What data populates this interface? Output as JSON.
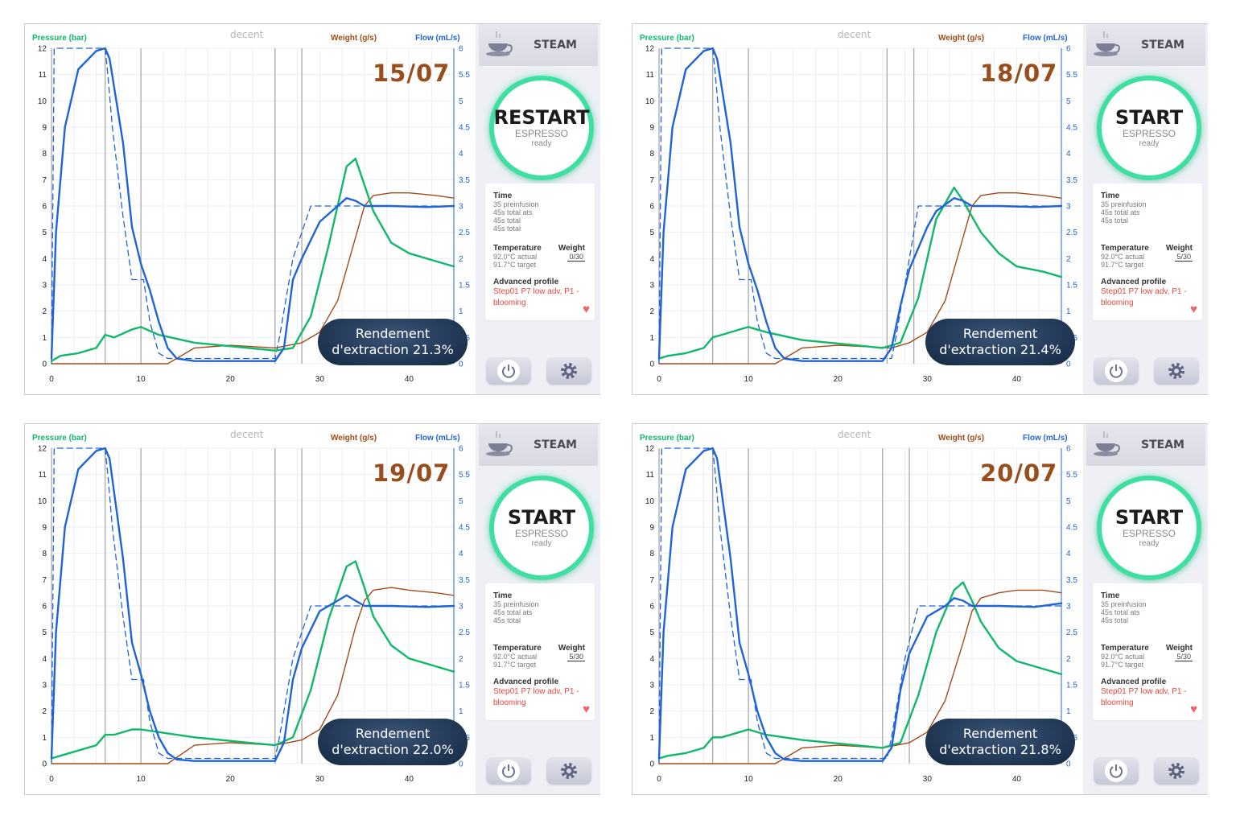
{
  "brand": "decent",
  "axis_titles": {
    "pressure": "Pressure (bar)",
    "weight": "Weight (g/s)",
    "flow": "Flow (mL/s)"
  },
  "colors": {
    "pressure": "#10b86a",
    "flow": "#1f63d8",
    "weight": "#a44a17",
    "date": "#9a4d1c",
    "ring": "#3ee0a2",
    "badge": "#1f3552"
  },
  "steam_label": "STEAM",
  "info": {
    "time_heading": "Time",
    "time_lines": [
      "35 preinfusion",
      "45s total ats",
      "45s total",
      "45s total"
    ],
    "temp_heading": "Temperature",
    "temp_lines": [
      "92.0°C actual",
      "91.7°C target"
    ],
    "weight_heading": "Weight",
    "profile_heading": "Advanced profile",
    "profile_lines": [
      "Step01 P7 low adv, P1 -",
      "blooming"
    ]
  },
  "icons": [
    "cup-icon",
    "power-icon",
    "gear-icon",
    "heart-icon"
  ],
  "panels": [
    {
      "date": "15/07",
      "start_label": "RESTART",
      "start_sub": "ESPRESSO",
      "start_status": "ready",
      "weight_value": "0/30",
      "badge_line1": "Rendement",
      "badge_line2": "d'extraction 21.3%",
      "time_lines": [
        "35 preinfusion",
        "45s total ats",
        "45s total",
        "45s total"
      ]
    },
    {
      "date": "18/07",
      "start_label": "START",
      "start_sub": "ESPRESSO",
      "start_status": "ready",
      "weight_value": "5/30",
      "badge_line1": "Rendement",
      "badge_line2": "d'extraction 21.4%",
      "time_lines": [
        "35 preinfusion",
        "45s total ats",
        "45s total",
        ""
      ]
    },
    {
      "date": "19/07",
      "start_label": "START",
      "start_sub": "ESPRESSO",
      "start_status": "ready",
      "weight_value": "5/30",
      "badge_line1": "Rendement",
      "badge_line2": "d'extraction 22.0%",
      "time_lines": [
        "35 preinfusion",
        "45s total ats",
        "45s total",
        ""
      ]
    },
    {
      "date": "20/07",
      "start_label": "START",
      "start_sub": "ESPRESSO",
      "start_status": "ready",
      "weight_value": "5/30",
      "badge_line1": "Rendement",
      "badge_line2": "d'extraction 21.8%",
      "time_lines": [
        "35 preinfusion",
        "45s total ats",
        "45s total",
        ""
      ]
    }
  ],
  "chart_data": [
    {
      "type": "line",
      "xlabel": "",
      "ylabel": "Pressure (bar)",
      "y2label": "Flow (mL/s)",
      "xlim": [
        0,
        45
      ],
      "ylim": [
        0,
        12
      ],
      "y2lim": [
        0,
        6
      ],
      "x_ticks": [
        0,
        10,
        20,
        30,
        40
      ],
      "y_ticks": [
        0,
        1,
        2,
        3,
        4,
        5,
        6,
        7,
        8,
        9,
        10,
        11,
        12
      ],
      "y2_ticks": [
        0,
        0.5,
        1,
        1.5,
        2,
        2.5,
        3,
        3.5,
        4,
        4.5,
        5,
        5.5,
        6
      ],
      "vlines": [
        0,
        6,
        10,
        25,
        28
      ],
      "series": [
        {
          "key": "pressure",
          "x": [
            0,
            1,
            3,
            5,
            6,
            7,
            9,
            10,
            12,
            16,
            22,
            25,
            27,
            29,
            31,
            33,
            34,
            35,
            36,
            38,
            40,
            43,
            45
          ],
          "y": [
            0.1,
            0.3,
            0.4,
            0.6,
            1.1,
            1.0,
            1.3,
            1.4,
            1.1,
            0.8,
            0.6,
            0.5,
            0.6,
            1.8,
            4.5,
            7.5,
            7.8,
            6.8,
            5.8,
            4.6,
            4.2,
            3.9,
            3.7
          ]
        },
        {
          "key": "flow",
          "x": [
            0,
            0.5,
            1.5,
            3,
            5,
            6,
            6.5,
            8,
            9,
            10,
            11,
            12,
            13,
            14,
            16,
            25,
            26,
            27,
            28,
            30,
            32,
            33,
            34,
            35,
            38,
            42,
            45
          ],
          "y": [
            0.1,
            2.5,
            4.5,
            5.6,
            5.95,
            6.0,
            5.8,
            4.2,
            2.6,
            1.9,
            1.4,
            0.8,
            0.3,
            0.1,
            0.05,
            0.05,
            0.3,
            1.6,
            2.0,
            2.7,
            3.0,
            3.15,
            3.1,
            3.0,
            3.0,
            2.98,
            3.0
          ]
        },
        {
          "key": "flow_target",
          "dashed": true,
          "x": [
            0,
            0.3,
            6,
            6.3,
            6.8,
            8,
            9,
            9.3,
            10.3,
            11,
            12,
            13,
            14,
            25,
            25.5,
            27,
            29,
            30,
            45
          ],
          "y": [
            0,
            6,
            6,
            5.5,
            4.5,
            2.8,
            1.6,
            1.6,
            1.6,
            0.8,
            0.2,
            0.1,
            0.1,
            0.1,
            0.5,
            2.0,
            3.0,
            3.0,
            3.0
          ]
        },
        {
          "key": "weight",
          "x": [
            0,
            13,
            16,
            20,
            25,
            28,
            30,
            32,
            34,
            35,
            36,
            38,
            40,
            43,
            45
          ],
          "y": [
            0,
            0,
            0.3,
            0.35,
            0.3,
            0.4,
            0.6,
            1.2,
            2.4,
            3.0,
            3.2,
            3.25,
            3.25,
            3.2,
            3.15
          ]
        }
      ]
    },
    {
      "type": "line",
      "xlabel": "",
      "ylabel": "Pressure (bar)",
      "y2label": "Flow (mL/s)",
      "xlim": [
        0,
        45
      ],
      "ylim": [
        0,
        12
      ],
      "y2lim": [
        0,
        6
      ],
      "x_ticks": [
        0,
        10,
        20,
        30,
        40
      ],
      "y_ticks": [
        0,
        1,
        2,
        3,
        4,
        5,
        6,
        7,
        8,
        9,
        10,
        11,
        12
      ],
      "y2_ticks": [
        0,
        0.5,
        1,
        1.5,
        2,
        2.5,
        3,
        3.5,
        4,
        4.5,
        5,
        5.5,
        6
      ],
      "vlines": [
        0,
        6,
        10,
        25.5,
        28.5
      ],
      "series": [
        {
          "key": "pressure",
          "x": [
            0,
            1,
            3,
            5,
            6,
            7,
            9,
            10,
            12,
            16,
            22,
            25,
            27,
            29,
            31,
            33,
            34,
            35,
            36,
            38,
            40,
            43,
            45
          ],
          "y": [
            0.2,
            0.3,
            0.4,
            0.6,
            1.0,
            1.1,
            1.3,
            1.4,
            1.2,
            0.9,
            0.7,
            0.6,
            0.8,
            2.5,
            5.5,
            6.7,
            6.2,
            5.6,
            5.0,
            4.2,
            3.7,
            3.5,
            3.3
          ]
        },
        {
          "key": "flow",
          "x": [
            0,
            0.5,
            1.5,
            3,
            5,
            6,
            6.5,
            8,
            9,
            10,
            11,
            12,
            13,
            14,
            16,
            25,
            26,
            27,
            28,
            30,
            31,
            33,
            34,
            35,
            38,
            42,
            45
          ],
          "y": [
            0.1,
            2.5,
            4.5,
            5.6,
            5.95,
            6.0,
            5.8,
            4.2,
            2.6,
            1.9,
            1.4,
            0.8,
            0.3,
            0.1,
            0.05,
            0.05,
            0.3,
            1.1,
            1.8,
            2.6,
            2.9,
            3.15,
            3.1,
            3.0,
            3.0,
            2.98,
            3.0
          ]
        },
        {
          "key": "flow_target",
          "dashed": true,
          "x": [
            0,
            0.3,
            6,
            6.3,
            6.8,
            8,
            9,
            9.3,
            10.3,
            11,
            12,
            13,
            14,
            26,
            26.5,
            28,
            29,
            30,
            45
          ],
          "y": [
            0,
            6,
            6,
            5.5,
            4.5,
            2.8,
            1.6,
            1.6,
            1.6,
            0.8,
            0.2,
            0.1,
            0.1,
            0.1,
            0.5,
            2.0,
            3.0,
            3.0,
            3.0
          ]
        },
        {
          "key": "weight",
          "x": [
            0,
            13,
            16,
            20,
            26,
            28,
            30,
            32,
            34,
            35,
            36,
            38,
            40,
            43,
            45
          ],
          "y": [
            0,
            0,
            0.3,
            0.35,
            0.3,
            0.4,
            0.6,
            1.2,
            2.4,
            3.0,
            3.2,
            3.25,
            3.25,
            3.2,
            3.15
          ]
        }
      ]
    },
    {
      "type": "line",
      "xlabel": "",
      "ylabel": "Pressure (bar)",
      "y2label": "Flow (mL/s)",
      "xlim": [
        0,
        45
      ],
      "ylim": [
        0,
        12
      ],
      "y2lim": [
        0,
        6
      ],
      "x_ticks": [
        0,
        10,
        20,
        30,
        40
      ],
      "y_ticks": [
        0,
        1,
        2,
        3,
        4,
        5,
        6,
        7,
        8,
        9,
        10,
        11,
        12
      ],
      "y2_ticks": [
        0,
        0.5,
        1,
        1.5,
        2,
        2.5,
        3,
        3.5,
        4,
        4.5,
        5,
        5.5,
        6
      ],
      "vlines": [
        0,
        6,
        10,
        25,
        28
      ],
      "series": [
        {
          "key": "pressure",
          "x": [
            0,
            1,
            3,
            5,
            6,
            7,
            9,
            10,
            12,
            16,
            22,
            25,
            27,
            29,
            31,
            33,
            34,
            35,
            36,
            38,
            40,
            43,
            45
          ],
          "y": [
            0.2,
            0.3,
            0.5,
            0.7,
            1.1,
            1.1,
            1.3,
            1.3,
            1.2,
            1.0,
            0.8,
            0.7,
            1.0,
            2.8,
            5.5,
            7.5,
            7.7,
            6.7,
            5.6,
            4.5,
            4.0,
            3.7,
            3.5
          ]
        },
        {
          "key": "flow",
          "x": [
            0,
            0.5,
            1.5,
            3,
            5,
            6,
            6.5,
            8,
            9,
            10,
            11,
            12,
            13,
            14,
            16,
            25,
            26,
            27,
            28,
            30,
            32,
            33,
            34,
            35,
            38,
            42,
            45
          ],
          "y": [
            0.1,
            2.5,
            4.5,
            5.6,
            5.95,
            6.0,
            5.8,
            3.9,
            2.3,
            1.7,
            1.0,
            0.5,
            0.2,
            0.08,
            0.05,
            0.05,
            0.4,
            1.6,
            2.2,
            2.9,
            3.1,
            3.2,
            3.1,
            3.0,
            3.0,
            2.98,
            3.0
          ]
        },
        {
          "key": "flow_target",
          "dashed": true,
          "x": [
            0,
            0.3,
            6,
            6.3,
            6.8,
            8,
            9,
            9.3,
            10.3,
            11,
            12,
            13,
            14,
            25,
            25.5,
            27,
            29,
            30,
            45
          ],
          "y": [
            0,
            6,
            6,
            5.5,
            4.5,
            2.8,
            1.6,
            1.6,
            1.6,
            0.8,
            0.2,
            0.1,
            0.1,
            0.1,
            0.5,
            2.0,
            3.0,
            3.0,
            3.0
          ]
        },
        {
          "key": "weight",
          "x": [
            0,
            13,
            16,
            20,
            25,
            28,
            30,
            32,
            34,
            35,
            36,
            38,
            40,
            43,
            45
          ],
          "y": [
            0,
            0,
            0.35,
            0.4,
            0.35,
            0.45,
            0.65,
            1.3,
            2.6,
            3.1,
            3.3,
            3.35,
            3.3,
            3.25,
            3.2
          ]
        }
      ]
    },
    {
      "type": "line",
      "xlabel": "",
      "ylabel": "Pressure (bar)",
      "y2label": "Flow (mL/s)",
      "xlim": [
        0,
        45
      ],
      "ylim": [
        0,
        12
      ],
      "y2lim": [
        0,
        6
      ],
      "x_ticks": [
        0,
        10,
        20,
        30,
        40
      ],
      "y_ticks": [
        0,
        1,
        2,
        3,
        4,
        5,
        6,
        7,
        8,
        9,
        10,
        11,
        12
      ],
      "y2_ticks": [
        0,
        0.5,
        1,
        1.5,
        2,
        2.5,
        3,
        3.5,
        4,
        4.5,
        5,
        5.5,
        6
      ],
      "vlines": [
        0,
        6,
        10,
        25,
        28
      ],
      "series": [
        {
          "key": "pressure",
          "x": [
            0,
            1,
            3,
            5,
            6,
            7,
            9,
            10,
            12,
            16,
            22,
            25,
            27,
            29,
            31,
            33,
            34,
            35,
            36,
            38,
            40,
            43,
            45
          ],
          "y": [
            0.2,
            0.3,
            0.4,
            0.6,
            1.0,
            1.0,
            1.2,
            1.3,
            1.1,
            0.9,
            0.7,
            0.6,
            0.8,
            2.6,
            5.0,
            6.6,
            6.9,
            6.2,
            5.4,
            4.4,
            3.9,
            3.6,
            3.4
          ]
        },
        {
          "key": "flow",
          "x": [
            0,
            0.5,
            1.5,
            3,
            5,
            6,
            6.5,
            8,
            9,
            10,
            11,
            12,
            13,
            14,
            16,
            25,
            26,
            27,
            28,
            30,
            32,
            33,
            34,
            35,
            38,
            42,
            45
          ],
          "y": [
            0.1,
            2.5,
            4.5,
            5.6,
            5.95,
            6.0,
            5.8,
            3.9,
            2.3,
            1.7,
            1.0,
            0.5,
            0.2,
            0.08,
            0.05,
            0.05,
            0.3,
            1.4,
            2.1,
            2.8,
            3.0,
            3.15,
            3.1,
            3.0,
            3.0,
            2.98,
            3.05
          ]
        },
        {
          "key": "flow_target",
          "dashed": true,
          "x": [
            0,
            0.3,
            6,
            6.3,
            6.8,
            8,
            9,
            9.3,
            10.3,
            11,
            12,
            13,
            14,
            25.5,
            26,
            27.5,
            29,
            30,
            45
          ],
          "y": [
            0,
            6,
            6,
            5.5,
            4.5,
            2.8,
            1.6,
            1.6,
            1.6,
            0.8,
            0.2,
            0.1,
            0.1,
            0.1,
            0.5,
            2.0,
            3.0,
            3.0,
            3.0
          ]
        },
        {
          "key": "weight",
          "x": [
            0,
            13,
            16,
            20,
            25,
            28,
            30,
            32,
            34,
            35,
            36,
            38,
            40,
            43,
            45
          ],
          "y": [
            0,
            0,
            0.3,
            0.35,
            0.3,
            0.4,
            0.6,
            1.2,
            2.3,
            2.9,
            3.15,
            3.25,
            3.3,
            3.3,
            3.25
          ]
        }
      ]
    }
  ]
}
